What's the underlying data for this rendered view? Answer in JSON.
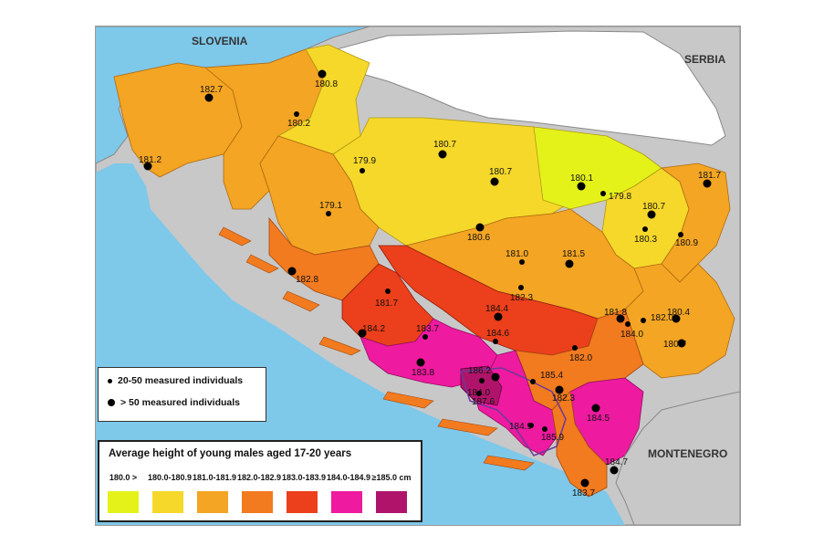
{
  "map": {
    "countries": {
      "slovenia": "SLOVENIA",
      "serbia": "SERBIA",
      "montenegro": "MONTENEGRO"
    },
    "points": [
      {
        "label": "180.8",
        "size": "large"
      },
      {
        "label": "182.7",
        "size": "large"
      },
      {
        "label": "180.2",
        "size": "small"
      },
      {
        "label": "181.2",
        "size": "large"
      },
      {
        "label": "179.9",
        "size": "small"
      },
      {
        "label": "180.7",
        "size": "large"
      },
      {
        "label": "180.7",
        "size": "large"
      },
      {
        "label": "179.1",
        "size": "small"
      },
      {
        "label": "180.6",
        "size": "large"
      },
      {
        "label": "180.1",
        "size": "large"
      },
      {
        "label": "179.8",
        "size": "small"
      },
      {
        "label": "181.7",
        "size": "large"
      },
      {
        "label": "180.7",
        "size": "large"
      },
      {
        "label": "180.3",
        "size": "small"
      },
      {
        "label": "180.9",
        "size": "small"
      },
      {
        "label": "182.8",
        "size": "large"
      },
      {
        "label": "181.0",
        "size": "small"
      },
      {
        "label": "181.5",
        "size": "large"
      },
      {
        "label": "182.3",
        "size": "small"
      },
      {
        "label": "181.7",
        "size": "small"
      },
      {
        "label": "184.4",
        "size": "large"
      },
      {
        "label": "181.8",
        "size": "large"
      },
      {
        "label": "182.0",
        "size": "small"
      },
      {
        "label": "180.4",
        "size": "large"
      },
      {
        "label": "184.0",
        "size": "small"
      },
      {
        "label": "184.2",
        "size": "large"
      },
      {
        "label": "183.7",
        "size": "small"
      },
      {
        "label": "184.6",
        "size": "small"
      },
      {
        "label": "182.0",
        "size": "small"
      },
      {
        "label": "180.7",
        "size": "large"
      },
      {
        "label": "183.8",
        "size": "large"
      },
      {
        "label": "184.0",
        "size": "small"
      },
      {
        "label": "186.2",
        "size": "large"
      },
      {
        "label": "185.4",
        "size": "small"
      },
      {
        "label": "187.6",
        "size": "small"
      },
      {
        "label": "182.3",
        "size": "large"
      },
      {
        "label": "184.5",
        "size": "large"
      },
      {
        "label": "184.9",
        "size": "small"
      },
      {
        "label": "185.9",
        "size": "small"
      },
      {
        "label": "184.7",
        "size": "large"
      },
      {
        "label": "183.7",
        "size": "large"
      }
    ]
  },
  "point_legend": {
    "small": "20-50 measured individuals",
    "large": "> 50 measured individuals"
  },
  "color_legend": {
    "title": "Average height of young males aged 17-20 years",
    "items": [
      {
        "range": "180.0 >",
        "color": "#e4f21a"
      },
      {
        "range": "180.0-180.9",
        "color": "#f5d82a"
      },
      {
        "range": "181.0-181.9",
        "color": "#f3a523"
      },
      {
        "range": "182.0-182.9",
        "color": "#f27a1f"
      },
      {
        "range": "183.0-183.9",
        "color": "#ec3f1b"
      },
      {
        "range": "184.0-184.9",
        "color": "#ee1aa0"
      },
      {
        "range": "≥185.0 cm",
        "color": "#b0146a"
      }
    ]
  },
  "colors": {
    "sea": "#7ec8ea",
    "neighbors": "#c8c8c8",
    "hungary": "#ffffff"
  }
}
